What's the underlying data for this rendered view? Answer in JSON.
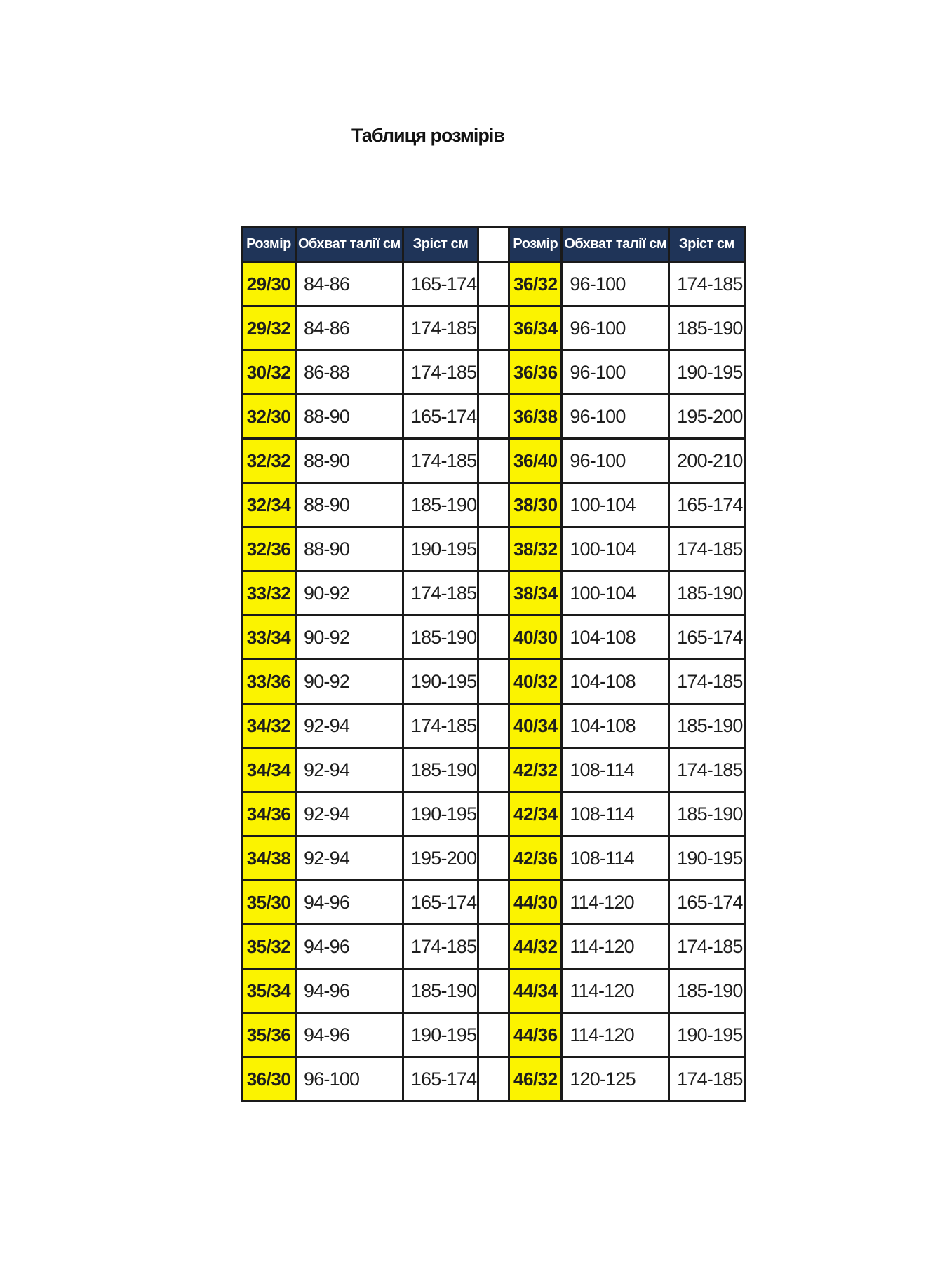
{
  "title": "Таблиця розмірів",
  "columns": [
    "Розмір",
    "Обхват талії см",
    "Зріст см"
  ],
  "colors": {
    "header_bg": "#1f3458",
    "header_text": "#ffffff",
    "size_cell_bg": "#fbf300",
    "border": "#1a1a1a",
    "text": "#1d1d1d"
  },
  "left_table": {
    "rows": [
      {
        "size": "29/30",
        "waist": "84-86",
        "height": "165-174"
      },
      {
        "size": "29/32",
        "waist": "84-86",
        "height": "174-185"
      },
      {
        "size": "30/32",
        "waist": "86-88",
        "height": "174-185"
      },
      {
        "size": "32/30",
        "waist": "88-90",
        "height": "165-174"
      },
      {
        "size": "32/32",
        "waist": "88-90",
        "height": "174-185"
      },
      {
        "size": "32/34",
        "waist": "88-90",
        "height": "185-190"
      },
      {
        "size": "32/36",
        "waist": "88-90",
        "height": "190-195"
      },
      {
        "size": "33/32",
        "waist": "90-92",
        "height": "174-185"
      },
      {
        "size": "33/34",
        "waist": "90-92",
        "height": "185-190"
      },
      {
        "size": "33/36",
        "waist": "90-92",
        "height": "190-195"
      },
      {
        "size": "34/32",
        "waist": "92-94",
        "height": "174-185"
      },
      {
        "size": "34/34",
        "waist": "92-94",
        "height": "185-190"
      },
      {
        "size": "34/36",
        "waist": "92-94",
        "height": "190-195"
      },
      {
        "size": "34/38",
        "waist": "92-94",
        "height": "195-200"
      },
      {
        "size": "35/30",
        "waist": "94-96",
        "height": "165-174"
      },
      {
        "size": "35/32",
        "waist": "94-96",
        "height": "174-185"
      },
      {
        "size": "35/34",
        "waist": "94-96",
        "height": "185-190"
      },
      {
        "size": "35/36",
        "waist": "94-96",
        "height": "190-195"
      },
      {
        "size": "36/30",
        "waist": "96-100",
        "height": "165-174"
      }
    ]
  },
  "right_table": {
    "rows": [
      {
        "size": "36/32",
        "waist": "96-100",
        "height": "174-185"
      },
      {
        "size": "36/34",
        "waist": "96-100",
        "height": "185-190"
      },
      {
        "size": "36/36",
        "waist": "96-100",
        "height": "190-195"
      },
      {
        "size": "36/38",
        "waist": "96-100",
        "height": "195-200"
      },
      {
        "size": "36/40",
        "waist": "96-100",
        "height": "200-210"
      },
      {
        "size": "38/30",
        "waist": "100-104",
        "height": "165-174"
      },
      {
        "size": "38/32",
        "waist": "100-104",
        "height": "174-185"
      },
      {
        "size": "38/34",
        "waist": "100-104",
        "height": "185-190"
      },
      {
        "size": "40/30",
        "waist": "104-108",
        "height": "165-174"
      },
      {
        "size": "40/32",
        "waist": "104-108",
        "height": "174-185"
      },
      {
        "size": "40/34",
        "waist": "104-108",
        "height": "185-190"
      },
      {
        "size": "42/32",
        "waist": "108-114",
        "height": "174-185"
      },
      {
        "size": "42/34",
        "waist": "108-114",
        "height": "185-190"
      },
      {
        "size": "42/36",
        "waist": "108-114",
        "height": "190-195"
      },
      {
        "size": "44/30",
        "waist": "114-120",
        "height": "165-174"
      },
      {
        "size": "44/32",
        "waist": "114-120",
        "height": "174-185"
      },
      {
        "size": "44/34",
        "waist": "114-120",
        "height": "185-190"
      },
      {
        "size": "44/36",
        "waist": "114-120",
        "height": "190-195"
      },
      {
        "size": "46/32",
        "waist": "120-125",
        "height": "174-185"
      }
    ]
  }
}
